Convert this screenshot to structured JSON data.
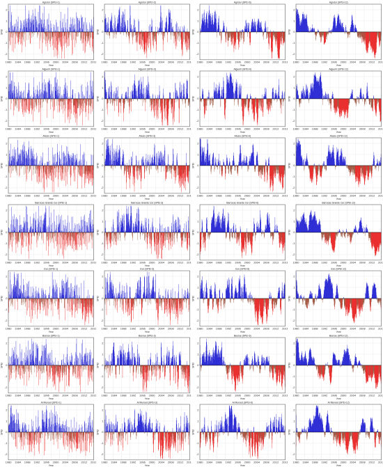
{
  "colors": {
    "positive": "#0000cc",
    "negative": "#e60000",
    "negative_core": "#8b3a1f",
    "frame": "#444444",
    "grid": "#dddddd",
    "halo": "#ff9cf0"
  },
  "x_label": "Year",
  "y_label": "SPEI",
  "chart_data": [
    {
      "type": "bar",
      "title": "Agrotur (SPEI-1)",
      "x_ticks": [
        "1980",
        "1984",
        "1988",
        "1992",
        "1996",
        "2000",
        "2004",
        "2008",
        "2012",
        "2016"
      ],
      "ylim": [
        -2.5,
        2.5
      ],
      "y_ticks": [
        -2,
        -1,
        0,
        1,
        2
      ],
      "seed": 11,
      "smooth": 1,
      "x_label": "Year",
      "y_label": "SPEI"
    },
    {
      "type": "bar",
      "title": "Agrotur (SPEI-3)",
      "x_ticks": [
        "1980",
        "1984",
        "1988",
        "1992",
        "1996",
        "2000",
        "2004",
        "2008",
        "2012",
        "2016"
      ],
      "ylim": [
        -2.5,
        2.5
      ],
      "y_ticks": [
        -2,
        -1,
        0,
        1,
        2
      ],
      "seed": 12,
      "smooth": 3,
      "x_label": "Year",
      "y_label": "SPEI"
    },
    {
      "type": "bar",
      "title": "Agrotur (SPEI-6)",
      "x_ticks": [
        "1980",
        "1984",
        "1988",
        "1992",
        "1996",
        "2000",
        "2004",
        "2008",
        "2012",
        "2016"
      ],
      "ylim": [
        -2.5,
        2.5
      ],
      "y_ticks": [
        -2,
        -1,
        0,
        1,
        2
      ],
      "seed": 13,
      "smooth": 6,
      "x_label": "Year",
      "y_label": "SPEI"
    },
    {
      "type": "bar",
      "title": "Agrotur (SPEI-12)",
      "x_ticks": [
        "1980",
        "1984",
        "1988",
        "1992",
        "1996",
        "2000",
        "2004",
        "2008",
        "2012",
        "2016"
      ],
      "ylim": [
        -2.5,
        2.5
      ],
      "y_ticks": [
        -2,
        -1,
        0,
        1,
        2
      ],
      "seed": 14,
      "smooth": 12,
      "x_label": "Year",
      "y_label": "SPEI"
    },
    {
      "type": "bar",
      "title": "Alguerir (SPEI-1)",
      "x_ticks": [
        "1980",
        "1984",
        "1988",
        "1992",
        "1996",
        "2000",
        "2004",
        "2008",
        "2012",
        "2016"
      ],
      "ylim": [
        -2.5,
        2.5
      ],
      "y_ticks": [
        -2,
        -1,
        0,
        1,
        2
      ],
      "seed": 21,
      "smooth": 1,
      "x_label": "Year",
      "y_label": "SPEI"
    },
    {
      "type": "bar",
      "title": "Alguerir (SPEI-3)",
      "x_ticks": [
        "1980",
        "1984",
        "1988",
        "1992",
        "1996",
        "2000",
        "2004",
        "2008",
        "2012",
        "2016"
      ],
      "ylim": [
        -2.5,
        2.5
      ],
      "y_ticks": [
        -2,
        -1,
        0,
        1,
        2
      ],
      "seed": 22,
      "smooth": 3,
      "x_label": "Year",
      "y_label": "SPEI"
    },
    {
      "type": "bar",
      "title": "Alguerir (SPEI-6)",
      "x_ticks": [
        "1980",
        "1984",
        "1988",
        "1992",
        "1996",
        "2000",
        "2004",
        "2008",
        "2012",
        "2016"
      ],
      "ylim": [
        -2.5,
        2.5
      ],
      "y_ticks": [
        -2,
        -1,
        0,
        1,
        2
      ],
      "seed": 23,
      "smooth": 6,
      "x_label": "Year",
      "y_label": "SPEI"
    },
    {
      "type": "bar",
      "title": "Alguerir (SPEI-12)",
      "x_ticks": [
        "1980",
        "1984",
        "1988",
        "1992",
        "1996",
        "2000",
        "2004",
        "2008",
        "2012",
        "2016"
      ],
      "ylim": [
        -2.5,
        2.5
      ],
      "y_ticks": [
        -2,
        -1,
        0,
        1,
        2
      ],
      "seed": 24,
      "smooth": 12,
      "x_label": "Year",
      "y_label": "SPEI"
    },
    {
      "type": "bar",
      "title": "Alvaro (SPEI-1)",
      "x_ticks": [
        "1980",
        "1984",
        "1988",
        "1992",
        "1996",
        "2000",
        "2004",
        "2008",
        "2012",
        "2016"
      ],
      "ylim": [
        -2.5,
        2.5
      ],
      "y_ticks": [
        -2,
        -1,
        0,
        1,
        2
      ],
      "seed": 31,
      "smooth": 1,
      "x_label": "Year",
      "y_label": "SPEI"
    },
    {
      "type": "bar",
      "title": "Alvaro (SPEI-3)",
      "x_ticks": [
        "1980",
        "1984",
        "1988",
        "1992",
        "1996",
        "2000",
        "2004",
        "2008",
        "2012",
        "2016"
      ],
      "ylim": [
        -2.5,
        2.5
      ],
      "y_ticks": [
        -2,
        -1,
        0,
        1,
        2
      ],
      "seed": 32,
      "smooth": 3,
      "x_label": "Year",
      "y_label": "SPEI"
    },
    {
      "type": "bar",
      "title": "Alvaro (SPEI-6)",
      "x_ticks": [
        "1980",
        "1984",
        "1988",
        "1992",
        "1996",
        "2000",
        "2004",
        "2008",
        "2012",
        "2016"
      ],
      "ylim": [
        -2.5,
        2.5
      ],
      "y_ticks": [
        -2,
        -1,
        0,
        1,
        2
      ],
      "seed": 33,
      "smooth": 6,
      "x_label": "Year",
      "y_label": "SPEI"
    },
    {
      "type": "bar",
      "title": "Alvaro (SPEI-12)",
      "x_ticks": [
        "1980",
        "1984",
        "1988",
        "1992",
        "1996",
        "2000",
        "2004",
        "2008",
        "2012",
        "2016"
      ],
      "ylim": [
        -2.5,
        2.5
      ],
      "y_ticks": [
        -2,
        -1,
        0,
        1,
        2
      ],
      "seed": 34,
      "smooth": 12,
      "x_label": "Year",
      "y_label": "SPEI"
    },
    {
      "type": "bar",
      "title": "Barrocas Grande Cer (SPEI-1)",
      "x_ticks": [
        "1980",
        "1984",
        "1988",
        "1992",
        "1996",
        "2000",
        "2004",
        "2008",
        "2012",
        "2016"
      ],
      "ylim": [
        -2.5,
        2.5
      ],
      "y_ticks": [
        -2,
        -1,
        0,
        1,
        2
      ],
      "seed": 41,
      "smooth": 1,
      "x_label": "Year",
      "y_label": "SPEI"
    },
    {
      "type": "bar",
      "title": "Barrocas Grande Cer (SPEI-3)",
      "x_ticks": [
        "1980",
        "1984",
        "1988",
        "1992",
        "1996",
        "2000",
        "2004",
        "2008",
        "2012",
        "2016"
      ],
      "ylim": [
        -2.5,
        2.5
      ],
      "y_ticks": [
        -2,
        -1,
        0,
        1,
        2
      ],
      "seed": 42,
      "smooth": 3,
      "x_label": "Year",
      "y_label": "SPEI"
    },
    {
      "type": "bar",
      "title": "Barrocas Grande Cer (SPEI-6)",
      "x_ticks": [
        "1980",
        "1984",
        "1988",
        "1992",
        "1996",
        "2000",
        "2004",
        "2008",
        "2012",
        "2016"
      ],
      "ylim": [
        -2.5,
        2.5
      ],
      "y_ticks": [
        -2,
        -1,
        0,
        1,
        2
      ],
      "seed": 43,
      "smooth": 6,
      "x_label": "Year",
      "y_label": "SPEI"
    },
    {
      "type": "bar",
      "title": "Barrocas Grande Cer (SPEI-12)",
      "x_ticks": [
        "1980",
        "1984",
        "1988",
        "1992",
        "1996",
        "2000",
        "2004",
        "2008",
        "2012",
        "2016"
      ],
      "ylim": [
        -2.5,
        2.5
      ],
      "y_ticks": [
        -2,
        -1,
        0,
        1,
        2
      ],
      "seed": 44,
      "smooth": 12,
      "x_label": "Year",
      "y_label": "SPEI"
    },
    {
      "type": "bar",
      "title": "Evo (SPEI-1)",
      "x_ticks": [
        "1980",
        "1984",
        "1988",
        "1992",
        "1996",
        "2000",
        "2004",
        "2008",
        "2012",
        "2016"
      ],
      "ylim": [
        -2.5,
        2.5
      ],
      "y_ticks": [
        -2,
        -1,
        0,
        1,
        2
      ],
      "seed": 51,
      "smooth": 1,
      "x_label": "Year",
      "y_label": "SPEI"
    },
    {
      "type": "bar",
      "title": "Evo (SPEI-3)",
      "x_ticks": [
        "1980",
        "1984",
        "1988",
        "1992",
        "1996",
        "2000",
        "2004",
        "2008",
        "2012",
        "2016"
      ],
      "ylim": [
        -2.5,
        2.5
      ],
      "y_ticks": [
        -2,
        -1,
        0,
        1,
        2
      ],
      "seed": 52,
      "smooth": 3,
      "x_label": "Year",
      "y_label": "SPEI"
    },
    {
      "type": "bar",
      "title": "Evo (SPEI-6)",
      "x_ticks": [
        "1980",
        "1984",
        "1988",
        "1992",
        "1996",
        "2000",
        "2004",
        "2008",
        "2012",
        "2016"
      ],
      "ylim": [
        -2.5,
        2.5
      ],
      "y_ticks": [
        -2,
        -1,
        0,
        1,
        2
      ],
      "seed": 53,
      "smooth": 6,
      "x_label": "Year",
      "y_label": "SPEI"
    },
    {
      "type": "bar",
      "title": "Evo (SPEI-12)",
      "x_ticks": [
        "1980",
        "1984",
        "1988",
        "1992",
        "1996",
        "2000",
        "2004",
        "2008",
        "2012",
        "2016"
      ],
      "ylim": [
        -2.5,
        2.5
      ],
      "y_ticks": [
        -2,
        -1,
        0,
        1,
        2
      ],
      "seed": 54,
      "smooth": 12,
      "x_label": "Year",
      "y_label": "SPEI"
    },
    {
      "type": "bar",
      "title": "Beerue (SPEI-1)",
      "x_ticks": [
        "1980",
        "1984",
        "1988",
        "1992",
        "1996",
        "2000",
        "2004",
        "2008",
        "2012",
        "2016"
      ],
      "ylim": [
        -2.5,
        2.5
      ],
      "y_ticks": [
        -2,
        -1,
        0,
        1,
        2
      ],
      "seed": 61,
      "smooth": 1,
      "x_label": "Year",
      "y_label": "SPEI"
    },
    {
      "type": "bar",
      "title": "Beerue (SPEI-3)",
      "x_ticks": [
        "1980",
        "1984",
        "1988",
        "1992",
        "1996",
        "2000",
        "2004",
        "2008",
        "2012",
        "2016"
      ],
      "ylim": [
        -2.5,
        2.5
      ],
      "y_ticks": [
        -2,
        -1,
        0,
        1,
        2
      ],
      "seed": 62,
      "smooth": 3,
      "x_label": "Year",
      "y_label": "SPEI"
    },
    {
      "type": "bar",
      "title": "Beerue (SPEI-6)",
      "x_ticks": [
        "1980",
        "1984",
        "1988",
        "1992",
        "1996",
        "2000",
        "2004",
        "2008",
        "2012",
        "2016"
      ],
      "ylim": [
        -2.5,
        2.5
      ],
      "y_ticks": [
        -2,
        -1,
        0,
        1,
        2
      ],
      "seed": 63,
      "smooth": 6,
      "x_label": "Year",
      "y_label": "SPEI"
    },
    {
      "type": "bar",
      "title": "Beerue (SPEI-12)",
      "x_ticks": [
        "1980",
        "1984",
        "1988",
        "1992",
        "1996",
        "2000",
        "2004",
        "2008",
        "2012",
        "2016"
      ],
      "ylim": [
        -2.5,
        2.5
      ],
      "y_ticks": [
        -2,
        -1,
        0,
        1,
        2
      ],
      "seed": 64,
      "smooth": 12,
      "x_label": "Year",
      "y_label": "SPEI"
    },
    {
      "type": "bar",
      "title": "Al Muroed (SPEI-1)",
      "x_ticks": [
        "1980",
        "1984",
        "1988",
        "1992",
        "1996",
        "2000",
        "2004",
        "2008",
        "2012",
        "2016"
      ],
      "ylim": [
        -2.5,
        2.5
      ],
      "y_ticks": [
        -2,
        -1,
        0,
        1,
        2
      ],
      "seed": 71,
      "smooth": 1,
      "x_label": "Year",
      "y_label": "SPEI"
    },
    {
      "type": "bar",
      "title": "Al Muroed (SPEI-3)",
      "x_ticks": [
        "1980",
        "1984",
        "1988",
        "1992",
        "1996",
        "2000",
        "2004",
        "2008",
        "2012",
        "2016"
      ],
      "ylim": [
        -2.5,
        2.5
      ],
      "y_ticks": [
        -2,
        -1,
        0,
        1,
        2
      ],
      "seed": 72,
      "smooth": 3,
      "x_label": "Year",
      "y_label": "SPEI"
    },
    {
      "type": "bar",
      "title": "Al Muroed (SPEI-6)",
      "x_ticks": [
        "1980",
        "1984",
        "1988",
        "1992",
        "1996",
        "2000",
        "2004",
        "2008",
        "2012",
        "2016"
      ],
      "ylim": [
        -2.5,
        2.5
      ],
      "y_ticks": [
        -2,
        -1,
        0,
        1,
        2
      ],
      "seed": 73,
      "smooth": 6,
      "x_label": "Year",
      "y_label": "SPEI"
    },
    {
      "type": "bar",
      "title": "Al Muroed (SPEI-12)",
      "x_ticks": [
        "1980",
        "1984",
        "1988",
        "1992",
        "1996",
        "2000",
        "2004",
        "2008",
        "2012",
        "2016"
      ],
      "ylim": [
        -2.5,
        2.5
      ],
      "y_ticks": [
        -2,
        -1,
        0,
        1,
        2
      ],
      "seed": 74,
      "smooth": 12,
      "x_label": "Year",
      "y_label": "SPEI"
    }
  ]
}
